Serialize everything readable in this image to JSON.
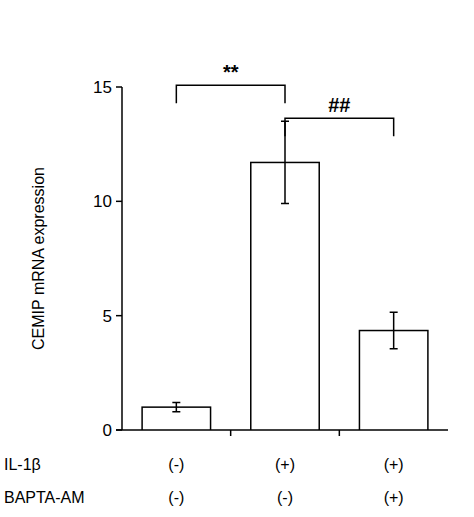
{
  "chart_data": {
    "type": "bar",
    "y_label": "CEMIP mRNA expression",
    "categories": [
      null,
      null,
      null
    ],
    "values": [
      1.0,
      11.7,
      4.35
    ],
    "errors": [
      0.2,
      1.8,
      0.8
    ],
    "color": "#ffffff",
    "ylim": [
      0,
      15
    ],
    "yticks": [
      0,
      5,
      10,
      15
    ],
    "grid": false,
    "annotations": [
      "**",
      "##"
    ],
    "treatments": [
      {
        "name": "IL-1β",
        "levels": [
          "(-)",
          "(+)",
          "(+)"
        ]
      },
      {
        "name": "BAPTA-AM",
        "levels": [
          "(-)",
          "(-)",
          "(+)"
        ]
      }
    ]
  }
}
